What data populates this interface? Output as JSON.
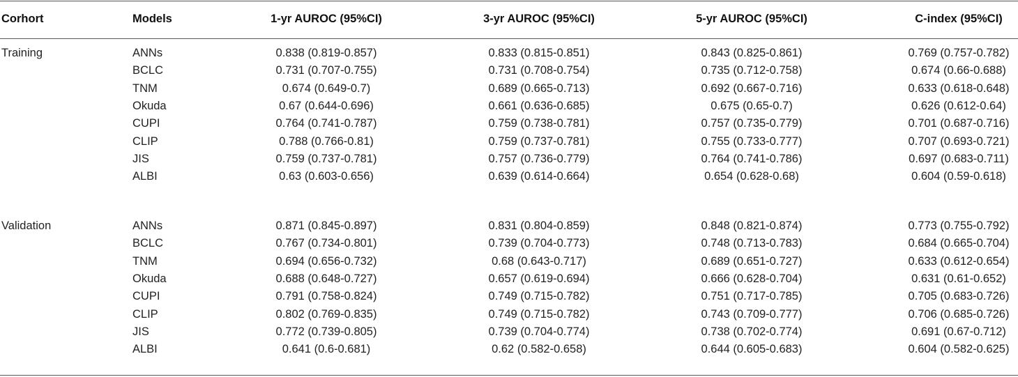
{
  "table": {
    "header": [
      "Corhort",
      "Models",
      "1-yr AUROC (95%CI)",
      "3-yr AUROC (95%CI)",
      "5-yr AUROC (95%CI)",
      "C-index (95%CI)"
    ],
    "groups": [
      {
        "cohort": "Training",
        "rows": [
          [
            "ANNs",
            "0.838 (0.819-0.857)",
            "0.833 (0.815-0.851)",
            "0.843 (0.825-0.861)",
            "0.769 (0.757-0.782)"
          ],
          [
            "BCLC",
            "0.731 (0.707-0.755)",
            "0.731 (0.708-0.754)",
            "0.735 (0.712-0.758)",
            "0.674 (0.66-0.688)"
          ],
          [
            "TNM",
            "0.674 (0.649-0.7)",
            "0.689 (0.665-0.713)",
            "0.692 (0.667-0.716)",
            "0.633 (0.618-0.648)"
          ],
          [
            "Okuda",
            "0.67 (0.644-0.696)",
            "0.661 (0.636-0.685)",
            "0.675 (0.65-0.7)",
            "0.626 (0.612-0.64)"
          ],
          [
            "CUPI",
            "0.764 (0.741-0.787)",
            "0.759 (0.738-0.781)",
            "0.757 (0.735-0.779)",
            "0.701 (0.687-0.716)"
          ],
          [
            "CLIP",
            "0.788 (0.766-0.81)",
            "0.759 (0.737-0.781)",
            "0.755 (0.733-0.777)",
            "0.707 (0.693-0.721)"
          ],
          [
            "JIS",
            "0.759 (0.737-0.781)",
            "0.757 (0.736-0.779)",
            "0.764 (0.741-0.786)",
            "0.697 (0.683-0.711)"
          ],
          [
            "ALBI",
            "0.63 (0.603-0.656)",
            "0.639 (0.614-0.664)",
            "0.654 (0.628-0.68)",
            "0.604 (0.59-0.618)"
          ]
        ]
      },
      {
        "cohort": "Validation",
        "rows": [
          [
            "ANNs",
            "0.871 (0.845-0.897)",
            "0.831 (0.804-0.859)",
            "0.848 (0.821-0.874)",
            "0.773 (0.755-0.792)"
          ],
          [
            "BCLC",
            "0.767 (0.734-0.801)",
            "0.739 (0.704-0.773)",
            "0.748 (0.713-0.783)",
            "0.684 (0.665-0.704)"
          ],
          [
            "TNM",
            "0.694 (0.656-0.732)",
            "0.68 (0.643-0.717)",
            "0.689 (0.651-0.727)",
            "0.633 (0.612-0.654)"
          ],
          [
            "Okuda",
            "0.688 (0.648-0.727)",
            "0.657 (0.619-0.694)",
            "0.666 (0.628-0.704)",
            "0.631 (0.61-0.652)"
          ],
          [
            "CUPI",
            "0.791 (0.758-0.824)",
            "0.749 (0.715-0.782)",
            "0.751 (0.717-0.785)",
            "0.705 (0.683-0.726)"
          ],
          [
            "CLIP",
            "0.802 (0.769-0.835)",
            "0.749 (0.715-0.782)",
            "0.743 (0.709-0.777)",
            "0.706 (0.685-0.726)"
          ],
          [
            "JIS",
            "0.772 (0.739-0.805)",
            "0.739 (0.704-0.774)",
            "0.738 (0.702-0.774)",
            "0.691 (0.67-0.712)"
          ],
          [
            "ALBI",
            "0.641 (0.6-0.681)",
            "0.62 (0.582-0.658)",
            "0.644 (0.605-0.683)",
            "0.604 (0.582-0.625)"
          ]
        ]
      }
    ]
  }
}
